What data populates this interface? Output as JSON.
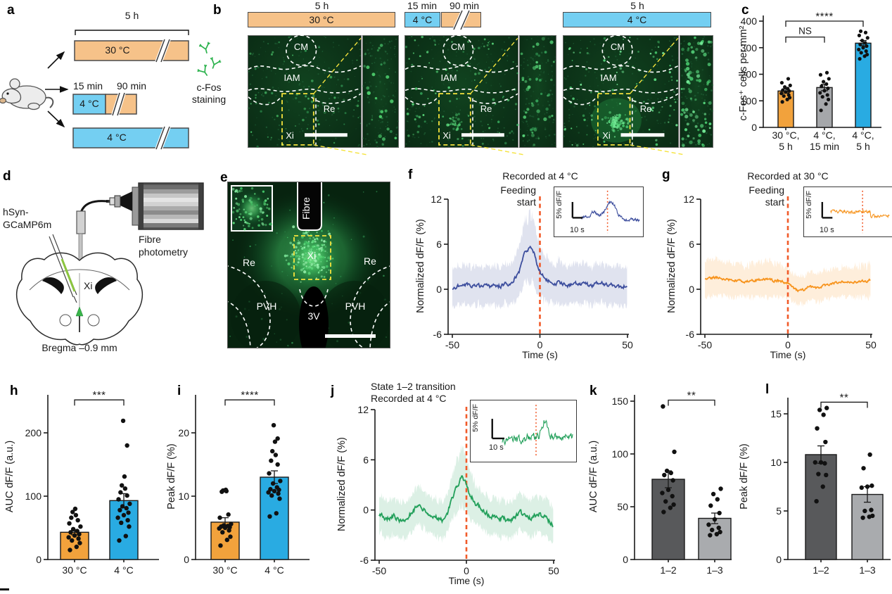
{
  "colors": {
    "orange_timeline": "#F6C289",
    "blue_timeline": "#74CFF2",
    "orange_bar": "#F2A23C",
    "blue_bar": "#29ABE2",
    "gray_bar": "#A5A7AA",
    "dark_gray_bar": "#58595B",
    "light_gray_bar": "#A9ABAE",
    "trace_blue": "#3E4F9E",
    "trace_orange": "#F7941E",
    "trace_green": "#23A05B",
    "event_red": "#F15A29",
    "antibody_green": "#2BB24C",
    "yellow_dash": "#F5E33D"
  },
  "panel_a": {
    "letter": "a",
    "duration_top": "5 h",
    "warm_bar": "30 °C",
    "cold_short": "15 min",
    "warm_after": "90 min",
    "cold_box": "4 °C",
    "cold_bar": "4 °C",
    "stain_line1": "c-Fos",
    "stain_line2": "staining"
  },
  "panel_b": {
    "letter": "b",
    "groups": [
      {
        "duration": "5 h",
        "temp": "30 °C",
        "regions": {
          "cm": "CM",
          "iam": "IAM",
          "re": "Re",
          "xi": "Xi"
        }
      },
      {
        "duration1": "15 min",
        "duration2": "90 min",
        "temp": "4 °C",
        "regions": {
          "cm": "CM",
          "iam": "IAM",
          "re": "Re",
          "xi": "Xi"
        }
      },
      {
        "duration": "5 h",
        "temp": "4 °C",
        "regions": {
          "cm": "CM",
          "iam": "IAM",
          "re": "Re",
          "xi": "Xi"
        }
      }
    ]
  },
  "panel_c": {
    "letter": "c"
  },
  "panel_d": {
    "letter": "d",
    "virus_line1": "hSyn-",
    "virus_line2": "GCaMP6m",
    "device_line1": "Fibre",
    "device_line2": "photometry",
    "xi": "Xi",
    "bregma": "Bregma –0.9 mm"
  },
  "panel_e": {
    "letter": "e",
    "fibre_label": "Fibre",
    "xi": "Xi",
    "re_left": "Re",
    "re_right": "Re",
    "pvh_left": "PVH",
    "pvh_right": "PVH",
    "third_ventricle": "3V"
  },
  "panel_f": {
    "letter": "f"
  },
  "panel_g": {
    "letter": "g"
  },
  "panel_h": {
    "letter": "h"
  },
  "panel_i": {
    "letter": "i"
  },
  "panel_j": {
    "letter": "j"
  },
  "panel_k": {
    "letter": "k"
  },
  "panel_l": {
    "letter": "l"
  },
  "chart_data": [
    {
      "id": "c",
      "type": "bar",
      "ylabel": "c-Fos⁺ cells per mm²",
      "categories": [
        [
          "30 °C,",
          "5 h"
        ],
        [
          "4 °C,",
          "15 min"
        ],
        [
          "4 °C,",
          "5 h"
        ]
      ],
      "values": [
        137,
        150,
        317
      ],
      "errors": [
        8,
        12,
        10
      ],
      "bar_colors": [
        "#F2A23C",
        "#A5A7AA",
        "#29ABE2"
      ],
      "points": [
        [
          96,
          105,
          112,
          118,
          122,
          128,
          133,
          137,
          140,
          146,
          152,
          158,
          168,
          183
        ],
        [
          64,
          88,
          105,
          115,
          122,
          130,
          138,
          147,
          155,
          163,
          172,
          183,
          198,
          206
        ],
        [
          258,
          268,
          274,
          281,
          287,
          293,
          300,
          306,
          312,
          318,
          327,
          337,
          346,
          357,
          362
        ]
      ],
      "ylim": [
        0,
        400
      ],
      "yticks": [
        0,
        100,
        200,
        300,
        400
      ],
      "sig": [
        {
          "a": 0,
          "b": 1,
          "label": "NS",
          "y": 340
        },
        {
          "a": 0,
          "b": 2,
          "label": "****",
          "y": 400
        }
      ]
    },
    {
      "id": "f",
      "type": "line",
      "title": "Recorded at 4 °C",
      "event_line1": "Feeding",
      "event_line2": "start",
      "ylabel": "Normalized dF/F (%)",
      "xlabel": "Time (s)",
      "xlim": [
        -50,
        50
      ],
      "ylim": [
        -6,
        12
      ],
      "yticks": [
        -6,
        0,
        6,
        12
      ],
      "xticks": [
        -50,
        0,
        50
      ],
      "color": "#3E4F9E",
      "band": 2.6,
      "noise": 0.5,
      "seed": 7,
      "keypoints": [
        [
          -50,
          0.2
        ],
        [
          -44,
          0.7
        ],
        [
          -38,
          0.4
        ],
        [
          -32,
          0.5
        ],
        [
          -26,
          0.3
        ],
        [
          -20,
          0.6
        ],
        [
          -16,
          0.9
        ],
        [
          -12,
          2.2
        ],
        [
          -9,
          4.6
        ],
        [
          -6,
          5.5
        ],
        [
          -4,
          5.4
        ],
        [
          -2,
          3.6
        ],
        [
          0,
          2.3
        ],
        [
          2,
          1.6
        ],
        [
          5,
          1.1
        ],
        [
          10,
          0.8
        ],
        [
          16,
          0.6
        ],
        [
          22,
          0.8
        ],
        [
          28,
          0.5
        ],
        [
          34,
          0.7
        ],
        [
          40,
          0.6
        ],
        [
          45,
          0.3
        ],
        [
          50,
          0.5
        ]
      ],
      "inset": {
        "scale_y": "5% dF/F",
        "scale_x": "10 s"
      }
    },
    {
      "id": "g",
      "type": "line",
      "title": "Recorded at 30 °C",
      "event_line1": "Feeding",
      "event_line2": "start",
      "ylabel": "Normalized dF/F (%)",
      "xlabel": "Time (s)",
      "xlim": [
        -50,
        50
      ],
      "ylim": [
        -6,
        12
      ],
      "yticks": [
        -6,
        0,
        6,
        12
      ],
      "xticks": [
        -50,
        0,
        50
      ],
      "color": "#F7941E",
      "band": 1.9,
      "noise": 0.32,
      "seed": 13,
      "keypoints": [
        [
          -50,
          1.4
        ],
        [
          -44,
          1.6
        ],
        [
          -38,
          1.3
        ],
        [
          -32,
          1.2
        ],
        [
          -26,
          1.0
        ],
        [
          -20,
          1.2
        ],
        [
          -14,
          1.4
        ],
        [
          -8,
          1.1
        ],
        [
          -3,
          1.0
        ],
        [
          0,
          0.9
        ],
        [
          3,
          0.2
        ],
        [
          6,
          -0.3
        ],
        [
          9,
          -0.1
        ],
        [
          13,
          0.3
        ],
        [
          17,
          0.2
        ],
        [
          21,
          0.4
        ],
        [
          25,
          0.6
        ],
        [
          30,
          0.8
        ],
        [
          35,
          1.0
        ],
        [
          40,
          1.0
        ],
        [
          45,
          1.1
        ],
        [
          50,
          1.2
        ]
      ],
      "inset": {
        "scale_y": "5% dF/F",
        "scale_x": "10 s"
      }
    },
    {
      "id": "h",
      "type": "bar",
      "ylabel": "AUC dF/F (a.u.)",
      "categories": [
        [
          "30 °C"
        ],
        [
          "4 °C"
        ]
      ],
      "values": [
        43,
        93
      ],
      "errors": [
        4,
        11
      ],
      "bar_colors": [
        "#F2A23C",
        "#29ABE2"
      ],
      "points": [
        [
          15,
          20,
          26,
          30,
          33,
          35,
          38,
          40,
          43,
          45,
          48,
          52,
          57,
          62,
          66,
          70,
          75,
          80
        ],
        [
          30,
          37,
          52,
          58,
          62,
          66,
          70,
          74,
          78,
          81,
          84,
          88,
          95,
          101,
          106,
          112,
          117,
          131,
          180,
          219
        ]
      ],
      "ylim": [
        0,
        250
      ],
      "yticks": [
        0,
        100,
        200
      ],
      "sig": [
        {
          "a": 0,
          "b": 1,
          "label": "***",
          "y": 252
        }
      ]
    },
    {
      "id": "i",
      "type": "bar",
      "ylabel": "Peak dF/F (%)",
      "categories": [
        [
          "30 °C"
        ],
        [
          "4 °C"
        ]
      ],
      "values": [
        5.9,
        13
      ],
      "errors": [
        0.7,
        1
      ],
      "bar_colors": [
        "#F2A23C",
        "#29ABE2"
      ],
      "points": [
        [
          2.2,
          3.1,
          3.6,
          4.3,
          4.6,
          4.9,
          5,
          5.1,
          5.2,
          5.3,
          5.4,
          5.6,
          6.6,
          7.1,
          10.7,
          10.8,
          10.9,
          11
        ],
        [
          6.8,
          7.3,
          9.6,
          10.1,
          10.4,
          10.6,
          10.8,
          11,
          11.1,
          11.4,
          12,
          12.4,
          13.6,
          15,
          15.6,
          16.5,
          17.1,
          18.6,
          19.1,
          21.2
        ]
      ],
      "ylim": [
        0,
        26
      ],
      "yticks": [
        0,
        10,
        20
      ],
      "sig": [
        {
          "a": 0,
          "b": 1,
          "label": "****",
          "y": 25.2
        }
      ]
    },
    {
      "id": "j",
      "type": "line",
      "title_line1": "State 1–2 transition",
      "title_line2": "Recorded at 4 °C",
      "ylabel": "Normalized dF/F (%)",
      "xlabel": "Time (s)",
      "xlim": [
        -50,
        50
      ],
      "ylim": [
        -6,
        12
      ],
      "yticks": [
        -6,
        0,
        6,
        12
      ],
      "xticks": [
        -50,
        0,
        50
      ],
      "color": "#23A05B",
      "band": 2.2,
      "noise": 0.55,
      "seed": 21,
      "keypoints": [
        [
          -50,
          -0.6
        ],
        [
          -46,
          -1.1
        ],
        [
          -42,
          -0.7
        ],
        [
          -38,
          -1.2
        ],
        [
          -34,
          -0.9
        ],
        [
          -30,
          0.1
        ],
        [
          -27,
          0.4
        ],
        [
          -24,
          0.1
        ],
        [
          -21,
          -0.5
        ],
        [
          -18,
          -0.9
        ],
        [
          -15,
          -1.2
        ],
        [
          -13,
          -1.4
        ],
        [
          -11,
          -0.6
        ],
        [
          -9,
          0.8
        ],
        [
          -7,
          2.0
        ],
        [
          -5,
          3.0
        ],
        [
          -3,
          3.9
        ],
        [
          -1,
          3.6
        ],
        [
          0,
          3.3
        ],
        [
          2,
          1.6
        ],
        [
          4,
          1.3
        ],
        [
          6,
          0.6
        ],
        [
          8,
          0.2
        ],
        [
          10,
          -0.2
        ],
        [
          13,
          -0.6
        ],
        [
          16,
          -0.9
        ],
        [
          19,
          -1.1
        ],
        [
          22,
          -1.1
        ],
        [
          25,
          -1.3
        ],
        [
          28,
          -0.9
        ],
        [
          31,
          -0.4
        ],
        [
          33,
          -0.5
        ],
        [
          35,
          -1.0
        ],
        [
          38,
          -0.8
        ],
        [
          40,
          -0.5
        ],
        [
          42,
          -0.4
        ],
        [
          44,
          -0.9
        ],
        [
          46,
          -1.1
        ],
        [
          48,
          -1.4
        ],
        [
          50,
          -1.9
        ]
      ],
      "inset": {
        "scale_y": "5% dF/F",
        "scale_x": "10 s"
      }
    },
    {
      "id": "k",
      "type": "bar",
      "ylabel": "AUC dF/F (a.u.)",
      "categories": [
        [
          "1–2"
        ],
        [
          "1–3"
        ]
      ],
      "values": [
        76,
        39
      ],
      "errors": [
        8,
        5
      ],
      "bar_colors": [
        "#58595B",
        "#A9ABAE"
      ],
      "points": [
        [
          45,
          49,
          52,
          55,
          60,
          63,
          66,
          75,
          80,
          82,
          84,
          102,
          145
        ],
        [
          23,
          24,
          26,
          28,
          30,
          33,
          38,
          44,
          51,
          57,
          62,
          67
        ]
      ],
      "ylim": [
        0,
        158
      ],
      "yticks": [
        0,
        50,
        100,
        150
      ],
      "sig": [
        {
          "a": 0,
          "b": 1,
          "label": "**",
          "y": 151
        }
      ]
    },
    {
      "id": "l",
      "type": "bar",
      "ylabel": "Peak dF/F (%)",
      "categories": [
        [
          "1–2"
        ],
        [
          "1–3"
        ]
      ],
      "values": [
        10.8,
        6.7
      ],
      "errors": [
        0.9,
        0.8
      ],
      "bar_colors": [
        "#58595B",
        "#A9ABAE"
      ],
      "points": [
        [
          6,
          7.5,
          8.7,
          8.8,
          9.9,
          10,
          10,
          12.1,
          13.5,
          14.9,
          15.4,
          15.6
        ],
        [
          4.3,
          4.4,
          4.5,
          5,
          5.1,
          7.4,
          7.5,
          7.6,
          9.4,
          10.8
        ]
      ],
      "ylim": [
        0,
        17
      ],
      "yticks": [
        0,
        5,
        10,
        15
      ],
      "sig": [
        {
          "a": 0,
          "b": 1,
          "label": "**",
          "y": 16.2
        }
      ]
    }
  ]
}
